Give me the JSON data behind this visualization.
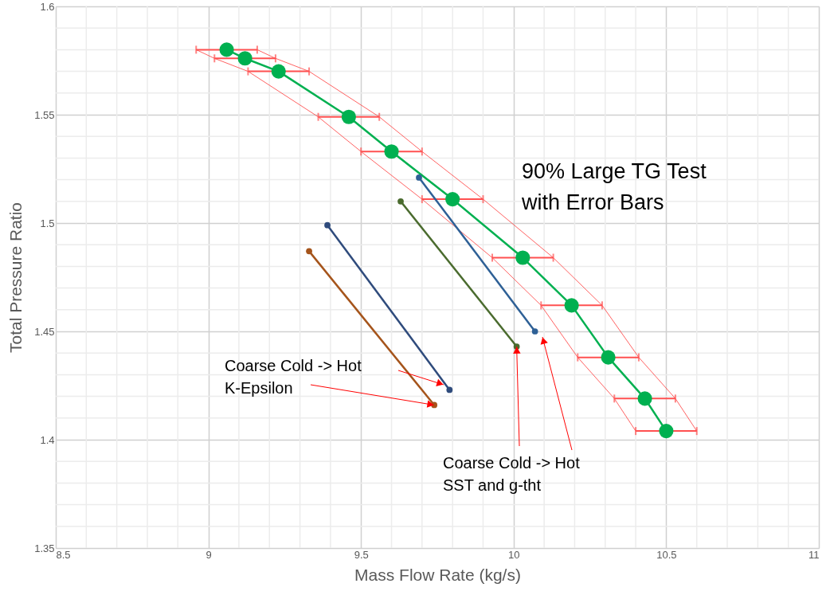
{
  "chart_data": {
    "type": "line",
    "xlabel": "Mass Flow Rate (kg/s)",
    "ylabel": "Total Pressure Ratio",
    "xlim": [
      8.5,
      11
    ],
    "xticks": [
      8.5,
      9,
      9.5,
      10,
      10.5,
      11
    ],
    "ylim": [
      1.35,
      1.6
    ],
    "yticks": [
      1.35,
      1.4,
      1.45,
      1.5,
      1.55,
      1.6
    ],
    "grid": true,
    "marker": "circle",
    "line_style": "solid",
    "series": [
      {
        "color": "#00b050",
        "x": [
          9.06,
          9.12,
          9.23,
          9.46,
          9.6,
          9.8,
          10.03,
          10.19,
          10.31,
          10.43,
          10.5
        ],
        "values": [
          1.58,
          1.576,
          1.57,
          1.549,
          1.533,
          1.511,
          1.484,
          1.462,
          1.438,
          1.419,
          1.404
        ],
        "xerrors": [
          0.1,
          0.1,
          0.1,
          0.1,
          0.1,
          0.1,
          0.1,
          0.1,
          0.1,
          0.1,
          0.1
        ]
      },
      {
        "color": "#ff5050",
        "marker": "none",
        "x": [
          8.96,
          9.02,
          9.13,
          9.36,
          9.5,
          9.7,
          9.93,
          10.09,
          10.21,
          10.33,
          10.4
        ],
        "values": [
          1.58,
          1.576,
          1.57,
          1.549,
          1.533,
          1.511,
          1.484,
          1.462,
          1.438,
          1.419,
          1.404
        ]
      },
      {
        "color": "#ff5050",
        "marker": "none",
        "x": [
          9.16,
          9.22,
          9.33,
          9.56,
          9.7,
          9.9,
          10.13,
          10.29,
          10.41,
          10.53,
          10.6
        ],
        "values": [
          1.58,
          1.576,
          1.57,
          1.549,
          1.533,
          1.511,
          1.484,
          1.462,
          1.438,
          1.419,
          1.404
        ]
      },
      {
        "color": "#2e6096",
        "x": [
          9.69,
          10.07
        ],
        "values": [
          1.521,
          1.45
        ]
      },
      {
        "color": "#2f4b7c",
        "x": [
          9.39,
          9.79
        ],
        "values": [
          1.499,
          1.423
        ]
      },
      {
        "color": "#4a6b2e",
        "x": [
          9.63,
          10.01
        ],
        "values": [
          1.51,
          1.443
        ]
      },
      {
        "color": "#a5541b",
        "x": [
          9.33,
          9.74
        ],
        "values": [
          1.487,
          1.416
        ]
      }
    ],
    "annotations": [
      "90% Large TG Test\nwith Error Bars",
      {
        "text": "Coarse Cold -> Hot\nK-Epsilon",
        "x": 9.74,
        "y": 1.416
      },
      {
        "text": "Coarse Cold -> Hot\nSST and g-tht",
        "x": 10.01,
        "y": 1.443
      }
    ]
  }
}
